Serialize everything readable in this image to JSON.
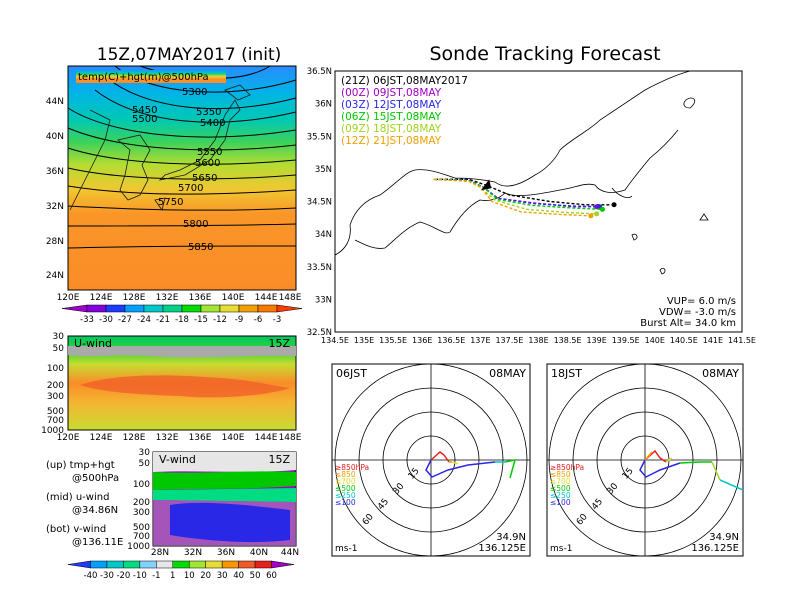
{
  "left_title": "15Z,07MAY2017 (init)",
  "right_title": "Sonde Tracking Forecast",
  "map500": {
    "label": "temp(C)+hgt(m)@500hPa",
    "lat_ticks": [
      "44N",
      "40N",
      "36N",
      "32N",
      "28N",
      "24N"
    ],
    "lon_ticks": [
      "120E",
      "124E",
      "128E",
      "132E",
      "136E",
      "140E",
      "144E",
      "148E"
    ],
    "contours": [
      "5300",
      "5350",
      "5400",
      "5450",
      "5500",
      "5550",
      "5600",
      "5650",
      "5700",
      "5750",
      "5800",
      "5850"
    ]
  },
  "temp_colorbar": {
    "labels": [
      "-33",
      "-30",
      "-27",
      "-24",
      "-21",
      "-18",
      "-15",
      "-12",
      "-9",
      "-6",
      "-3"
    ],
    "colors": [
      "#a000c8",
      "#8200dc",
      "#1e3cff",
      "#00a0ff",
      "#00c8c8",
      "#00d28c",
      "#00dc00",
      "#a0e632",
      "#e6dc32",
      "#f0a000",
      "#fa7800",
      "#ff3c00"
    ]
  },
  "uwind": {
    "label": "U-wind",
    "time": "15Z",
    "levels": [
      "30",
      "50",
      "100",
      "200",
      "300",
      "500",
      "700",
      "1000"
    ],
    "lon_ticks": [
      "120E",
      "124E",
      "128E",
      "132E",
      "136E",
      "140E",
      "144E",
      "148E"
    ]
  },
  "vwind": {
    "label": "V-wind",
    "time": "15Z",
    "levels": [
      "30",
      "50",
      "100",
      "200",
      "300",
      "500",
      "700",
      "1000"
    ],
    "lat_ticks": [
      "28N",
      "32N",
      "36N",
      "40N",
      "44N"
    ]
  },
  "legend_text": {
    "up": "(up) tmp+hgt",
    "up2": "@500hPa",
    "mid": "(mid) u-wind",
    "mid2": "@34.86N",
    "bot": "(bot) v-wind",
    "bot2": "@136.11E"
  },
  "wind_colorbar": {
    "labels": [
      "-40",
      "-30",
      "-20",
      "-10",
      "-1",
      "1",
      "10",
      "20",
      "30",
      "40",
      "50",
      "60"
    ],
    "colors": [
      "#1e3cff",
      "#00a0ff",
      "#00c8c8",
      "#00dc82",
      "#82d2ff",
      "#e6e6e6",
      "#00dc00",
      "#a0e632",
      "#e6dc32",
      "#fa9600",
      "#f05a28",
      "#e61e1e",
      "#a000c8"
    ]
  },
  "tracking": {
    "lat_ticks": [
      "36.5N",
      "36N",
      "35.5N",
      "35N",
      "34.5N",
      "34N",
      "33.5N",
      "33N",
      "32.5N"
    ],
    "lon_ticks": [
      "134.5E",
      "135E",
      "135.5E",
      "136E",
      "136.5E",
      "137E",
      "137.5E",
      "138E",
      "138.5E",
      "139E",
      "139.5E",
      "140E",
      "140.5E",
      "141E",
      "141.5E"
    ],
    "legend": [
      {
        "text": "(21Z)  06JST,08MAY2017",
        "color": "#000000"
      },
      {
        "text": "(00Z)  09JST,08MAY",
        "color": "#a000c8"
      },
      {
        "text": "(03Z)  12JST,08MAY",
        "color": "#2828e6"
      },
      {
        "text": "(06Z)  15JST,08MAY",
        "color": "#00c800"
      },
      {
        "text": "(09Z)  18JST,08MAY",
        "color": "#a0d21e"
      },
      {
        "text": "(12Z)  21JST,08MAY",
        "color": "#f0a000"
      }
    ],
    "info": [
      "VUP=  6.0  m/s",
      "VDW=  -3.0  m/s",
      "Burst Alt=  34.0  km"
    ],
    "launch": {
      "lon": 137.1,
      "lat": 34.75
    },
    "tracks": [
      {
        "color": "#000000",
        "points": [
          [
            136.22,
            34.84
          ],
          [
            136.8,
            34.84
          ],
          [
            137.1,
            34.75
          ],
          [
            137.5,
            34.6
          ],
          [
            138.2,
            34.5
          ],
          [
            138.8,
            34.45
          ],
          [
            139.3,
            34.45
          ]
        ]
      },
      {
        "color": "#a000c8",
        "points": [
          [
            136.2,
            34.84
          ],
          [
            136.8,
            34.82
          ],
          [
            137.05,
            34.72
          ],
          [
            137.3,
            34.55
          ],
          [
            137.9,
            34.48
          ],
          [
            138.6,
            34.42
          ],
          [
            139.0,
            34.42
          ]
        ]
      },
      {
        "color": "#2828e6",
        "points": [
          [
            136.2,
            34.84
          ],
          [
            136.8,
            34.83
          ],
          [
            137.05,
            34.72
          ],
          [
            137.3,
            34.55
          ],
          [
            137.9,
            34.47
          ],
          [
            138.6,
            34.43
          ],
          [
            139.05,
            34.42
          ]
        ]
      },
      {
        "color": "#00c800",
        "points": [
          [
            136.2,
            34.84
          ],
          [
            136.8,
            34.82
          ],
          [
            137.05,
            34.72
          ],
          [
            137.3,
            34.53
          ],
          [
            137.9,
            34.44
          ],
          [
            138.6,
            34.4
          ],
          [
            139.1,
            34.38
          ]
        ]
      },
      {
        "color": "#a0d21e",
        "points": [
          [
            136.2,
            34.84
          ],
          [
            136.8,
            34.81
          ],
          [
            137.0,
            34.72
          ],
          [
            137.25,
            34.52
          ],
          [
            137.8,
            34.38
          ],
          [
            138.5,
            34.33
          ],
          [
            139.0,
            34.31
          ]
        ]
      },
      {
        "color": "#f0a000",
        "points": [
          [
            136.2,
            34.84
          ],
          [
            136.8,
            34.81
          ],
          [
            137.0,
            34.72
          ],
          [
            137.2,
            34.5
          ],
          [
            137.7,
            34.34
          ],
          [
            138.4,
            34.3
          ],
          [
            138.9,
            34.28
          ]
        ]
      }
    ]
  },
  "hodo_left": {
    "time": "06JST",
    "date": "08MAY",
    "ring_labels": [
      "15",
      "30",
      "45",
      "60"
    ],
    "levels": [
      {
        "text": "≥850hPa",
        "color": "#e61e1e"
      },
      {
        "text": "≤850",
        "color": "#f0a000"
      },
      {
        "text": "≤700",
        "color": "#e6dc32"
      },
      {
        "text": "≤500",
        "color": "#00c800"
      },
      {
        "text": "≤250",
        "color": "#00c8c8"
      },
      {
        "text": "≤100",
        "color": "#2828e6"
      }
    ],
    "lat": "34.9N",
    "lon": "136.125E",
    "unit": "ms-1"
  },
  "hodo_right": {
    "time": "18JST",
    "date": "08MAY",
    "ring_labels": [
      "15",
      "30",
      "45",
      "60"
    ],
    "levels": [
      {
        "text": "≥850hPa",
        "color": "#e61e1e"
      },
      {
        "text": "≤850",
        "color": "#f0a000"
      },
      {
        "text": "≤700",
        "color": "#e6dc32"
      },
      {
        "text": "≤500",
        "color": "#00c800"
      },
      {
        "text": "≤250",
        "color": "#00c8c8"
      },
      {
        "text": "≤100",
        "color": "#2828e6"
      }
    ],
    "lat": "34.9N",
    "lon": "136.125E",
    "unit": "ms-1"
  }
}
